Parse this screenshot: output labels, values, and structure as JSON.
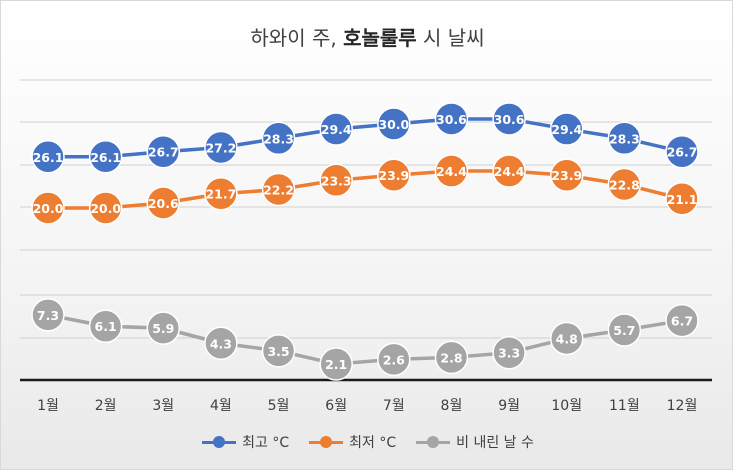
{
  "chart_data": {
    "type": "line",
    "title_parts": [
      "하와이 주, ",
      "호놀룰루",
      " 시 날씨"
    ],
    "categories": [
      "1월",
      "2월",
      "3월",
      "4월",
      "5월",
      "6월",
      "7월",
      "8월",
      "9월",
      "10월",
      "11월",
      "12월"
    ],
    "series": [
      {
        "name": "최고 °C",
        "color": "#4472C4",
        "values": [
          26.1,
          26.1,
          26.7,
          27.2,
          28.3,
          29.4,
          30.0,
          30.6,
          30.6,
          29.4,
          28.3,
          26.7
        ]
      },
      {
        "name": "최저 °C",
        "color": "#ED7D31",
        "values": [
          20.0,
          20.0,
          20.6,
          21.7,
          22.2,
          23.3,
          23.9,
          24.4,
          24.4,
          23.9,
          22.8,
          21.1
        ]
      },
      {
        "name": "비 내린 날 수",
        "color": "#A5A5A5",
        "values": [
          7.3,
          6.1,
          5.9,
          4.3,
          3.5,
          2.1,
          2.6,
          2.8,
          3.3,
          4.8,
          5.7,
          6.7
        ]
      }
    ],
    "legend_position": "bottom",
    "grid": true
  }
}
